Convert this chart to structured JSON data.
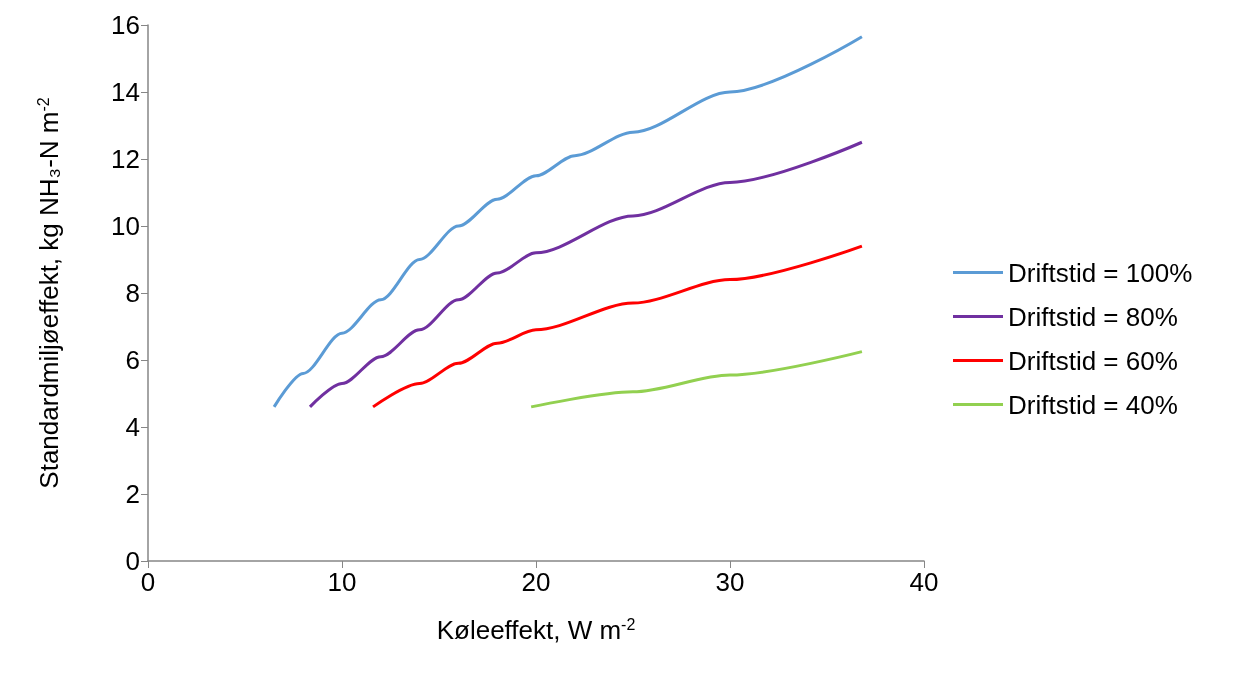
{
  "chart_data": {
    "type": "line",
    "xlabel": "Køleeffekt, W m$^{-2}$",
    "ylabel": "Standardmiljøeffekt, kg NH₃-N m$^{-2}$",
    "xlim": [
      0,
      40
    ],
    "xticks": [
      0,
      10,
      20,
      30,
      40
    ],
    "ylim": [
      0,
      16
    ],
    "yticks": [
      0,
      2,
      4,
      6,
      8,
      10,
      12,
      14,
      16
    ],
    "grid": false,
    "legend": "right",
    "marker": "none",
    "line_style": "solid",
    "series": [
      {
        "name": "Driftstid = 100%",
        "color": "#5b9bd5",
        "x": [
          6.5,
          8,
          10,
          12,
          14,
          16,
          18,
          20,
          22,
          25,
          30,
          36.8
        ],
        "values": [
          4.6,
          5.6,
          6.8,
          7.8,
          9.0,
          10.0,
          10.8,
          11.5,
          12.1,
          12.8,
          14.0,
          15.65
        ]
      },
      {
        "name": "Driftstid = 80%",
        "color": "#7030a0",
        "x": [
          8.35,
          10,
          12,
          14,
          16,
          18,
          20,
          25,
          30,
          36.8
        ],
        "values": [
          4.6,
          5.3,
          6.1,
          6.9,
          7.8,
          8.6,
          9.2,
          10.3,
          11.3,
          12.5
        ]
      },
      {
        "name": "Driftstid = 60%",
        "color": "#ff0000",
        "x": [
          11.6,
          14,
          16,
          18,
          20,
          25,
          30,
          36.8
        ],
        "values": [
          4.6,
          5.3,
          5.9,
          6.5,
          6.9,
          7.7,
          8.4,
          9.4
        ]
      },
      {
        "name": "Driftstid = 40%",
        "color": "#92d050",
        "x": [
          19.75,
          25,
          30,
          36.8
        ],
        "values": [
          4.6,
          5.05,
          5.55,
          6.25
        ]
      }
    ]
  }
}
